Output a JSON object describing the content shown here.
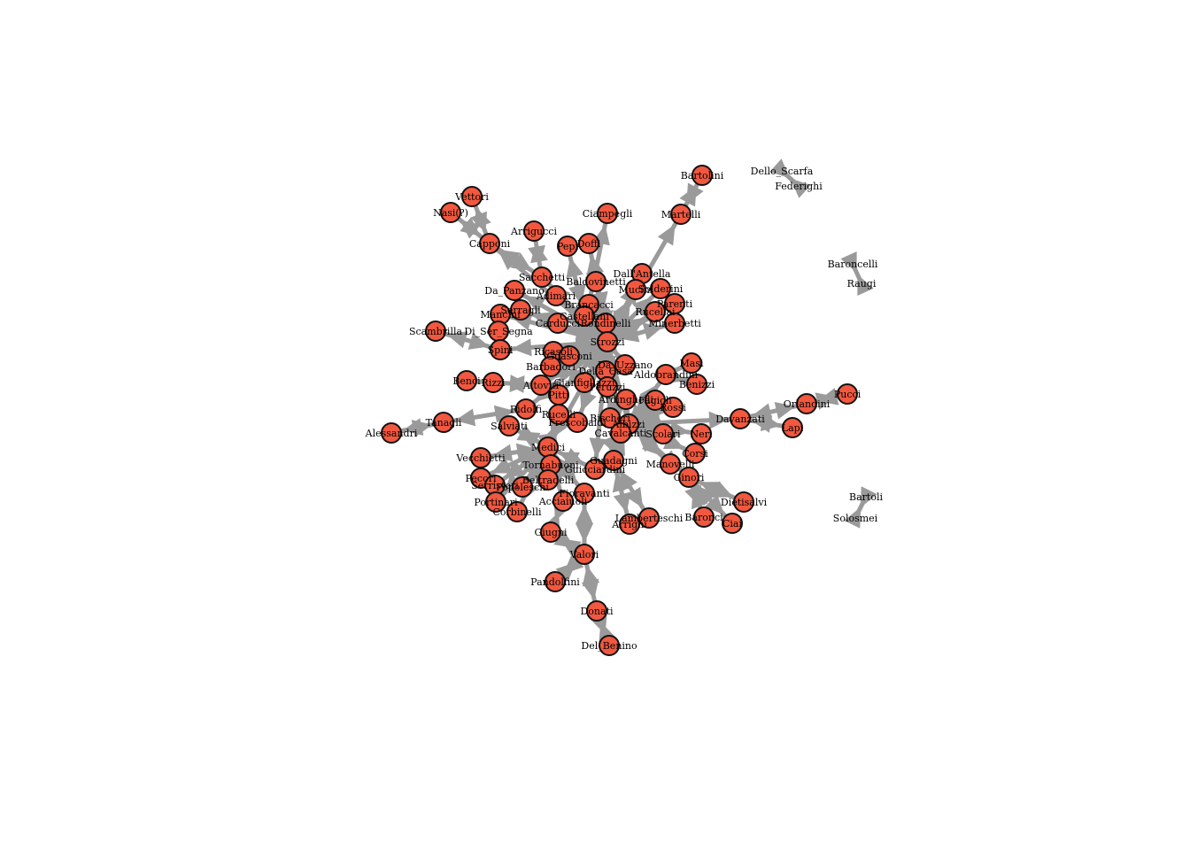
{
  "graph": {
    "nodes": [
      {
        "id": "Bartolini",
        "visible": true
      },
      {
        "id": "Dello_Scarfa",
        "visible": false
      },
      {
        "id": "Federighi",
        "visible": false
      },
      {
        "id": "Vettori",
        "visible": true
      },
      {
        "id": "Nasi(?)",
        "visible": true
      },
      {
        "id": "Ciampegli",
        "visible": true
      },
      {
        "id": "Martelli",
        "visible": true
      },
      {
        "id": "Arrigucci",
        "visible": true
      },
      {
        "id": "Capponi",
        "visible": true
      },
      {
        "id": "Pepi",
        "visible": true
      },
      {
        "id": "Doffi",
        "visible": true
      },
      {
        "id": "Baroncelli",
        "visible": false
      },
      {
        "id": "Raugi",
        "visible": false
      },
      {
        "id": "Sacchetti",
        "visible": true
      },
      {
        "id": "Dall'Antella",
        "visible": true
      },
      {
        "id": "Baldovinetti",
        "visible": true
      },
      {
        "id": "Da_Panzano",
        "visible": true
      },
      {
        "id": "Adimari",
        "visible": true
      },
      {
        "id": "Mucini",
        "visible": true
      },
      {
        "id": "Solderini",
        "visible": true
      },
      {
        "id": "Brancacci",
        "visible": true
      },
      {
        "id": "Parenti",
        "visible": true
      },
      {
        "id": "Mancini",
        "visible": true
      },
      {
        "id": "Serragli",
        "visible": true
      },
      {
        "id": "Castellani",
        "visible": true
      },
      {
        "id": "Rucellai",
        "visible": true
      },
      {
        "id": "Carducci",
        "visible": true
      },
      {
        "id": "Rondinelli",
        "visible": true
      },
      {
        "id": "Minerbetti",
        "visible": true
      },
      {
        "id": "Scambrilla",
        "visible": true
      },
      {
        "id": "Di_Ser_Segna",
        "visible": true
      },
      {
        "id": "Strozzi",
        "visible": true
      },
      {
        "id": "Spini",
        "visible": true
      },
      {
        "id": "Ricasoli",
        "visible": true
      },
      {
        "id": "Guasconi",
        "visible": true
      },
      {
        "id": "Masi",
        "visible": true
      },
      {
        "id": "Da_Uzzano",
        "visible": true
      },
      {
        "id": "Barbadori",
        "visible": true
      },
      {
        "id": "Della_Casa",
        "visible": true
      },
      {
        "id": "Aldobrandini",
        "visible": true
      },
      {
        "id": "Benci",
        "visible": true
      },
      {
        "id": "Benizzi",
        "visible": true
      },
      {
        "id": "Rizzi",
        "visible": true
      },
      {
        "id": "Altoviti",
        "visible": true
      },
      {
        "id": "Gianfigliazzi",
        "visible": true
      },
      {
        "id": "Peruzzi",
        "visible": true
      },
      {
        "id": "Pitti",
        "visible": true
      },
      {
        "id": "Orlandini",
        "visible": true
      },
      {
        "id": "Pucci",
        "visible": true
      },
      {
        "id": "Ardinghelli",
        "visible": true
      },
      {
        "id": "Fagioli",
        "visible": true
      },
      {
        "id": "Rossi",
        "visible": true
      },
      {
        "id": "Davanzati",
        "visible": true
      },
      {
        "id": "Ridolfi",
        "visible": true
      },
      {
        "id": "Tanagli",
        "visible": true
      },
      {
        "id": "Bischeri",
        "visible": true
      },
      {
        "id": "Rucelli",
        "visible": true
      },
      {
        "id": "Frescobaldi",
        "visible": true
      },
      {
        "id": "Albizzi",
        "visible": true
      },
      {
        "id": "Lapi",
        "visible": true
      },
      {
        "id": "Alessandri",
        "visible": true
      },
      {
        "id": "Salviati",
        "visible": true
      },
      {
        "id": "Cavalcanti",
        "visible": true
      },
      {
        "id": "Scolari",
        "visible": true
      },
      {
        "id": "Neri",
        "visible": true
      },
      {
        "id": "Medici",
        "visible": true
      },
      {
        "id": "Corsi",
        "visible": true
      },
      {
        "id": "Vecchietti",
        "visible": true
      },
      {
        "id": "Guadagni",
        "visible": true
      },
      {
        "id": "Tornabuoni",
        "visible": true
      },
      {
        "id": "Guicciardini",
        "visible": true
      },
      {
        "id": "Manovelli",
        "visible": true
      },
      {
        "id": "Pecori",
        "visible": true
      },
      {
        "id": "Ginori",
        "visible": true
      },
      {
        "id": "Serristori",
        "visible": true
      },
      {
        "id": "Popoleschi",
        "visible": true
      },
      {
        "id": "Beltradelli",
        "visible": true
      },
      {
        "id": "Fioravanti",
        "visible": true
      },
      {
        "id": "Bartoli",
        "visible": false
      },
      {
        "id": "Portinari",
        "visible": true
      },
      {
        "id": "Acciaiuoli",
        "visible": true
      },
      {
        "id": "Dietisalvi",
        "visible": true
      },
      {
        "id": "Corbinelli",
        "visible": true
      },
      {
        "id": "Lamberteschi",
        "visible": true
      },
      {
        "id": "Arrighi",
        "visible": true
      },
      {
        "id": "Baronci",
        "visible": true
      },
      {
        "id": "Ciai",
        "visible": true
      },
      {
        "id": "Solosmei",
        "visible": false
      },
      {
        "id": "Giugni",
        "visible": true
      },
      {
        "id": "Valori",
        "visible": true
      },
      {
        "id": "Pandolfini",
        "visible": true
      },
      {
        "id": "Donati",
        "visible": true
      },
      {
        "id": "Del_Benino",
        "visible": true
      }
    ],
    "labels": {
      "Bartolini": "Bartolini",
      "Dello_Scarfa": "Dello_Scarfa",
      "Federighi": "Federighi",
      "Vettori": "Vettori",
      "Nasi(?)": "Nasi(?)",
      "Ciampegli": "Ciampegli",
      "Martelli": "Martelli",
      "Arrigucci": "Arrigucci",
      "Capponi": "Capponi",
      "Pepi": "Pepi",
      "Doffi": "Doffi",
      "Baroncelli": "Baroncelli",
      "Raugi": "Raugi",
      "Sacchetti": "Sacchetti",
      "Dall'Antella": "Dall'Antella",
      "Baldovinetti": "Baldovinetti",
      "Da_Panzano": "Da_Panzano",
      "Adimari": "Adimari",
      "Mucini": "Mucini",
      "Solderini": "Solderini",
      "Brancacci": "Brancacci",
      "Parenti": "Parenti",
      "Mancini": "Mancini",
      "Serragli": "Serragli",
      "Castellani": "Castellani",
      "Rucellai": "Rucellai",
      "Carducci": "Carducci",
      "Rondinelli": "Rondinelli",
      "Minerbetti": "Minerbetti",
      "Scambrilla": "Scambrilla",
      "Di_Ser_Segna": "Di_Ser_Segna",
      "Strozzi": "Strozzi",
      "Spini": "Spini",
      "Ricasoli": "Ricasoli",
      "Guasconi": "Guasconi",
      "Masi": "Masi",
      "Da_Uzzano": "Da_Uzzano",
      "Barbadori": "Barbadori",
      "Della_Casa": "Della_Casa",
      "Aldobrandini": "Aldobrandini",
      "Benci": "Benci",
      "Benizzi": "Benizzi",
      "Rizzi": "Rizzi",
      "Altoviti": "Altoviti",
      "Gianfigliazzi": "Gianfigliazzi",
      "Peruzzi": "Peruzzi",
      "Pitti": "Pitti",
      "Orlandini": "Orlandini",
      "Pucci": "Pucci",
      "Ardinghelli": "Ardinghelli",
      "Fagioli": "Fagioli",
      "Rossi": "Rossi",
      "Davanzati": "Davanzati",
      "Ridolfi": "Ridolfi",
      "Tanagli": "Tanagli",
      "Bischeri": "Bischeri",
      "Rucelli": "Rucelli",
      "Frescobaldi": "Frescobaldi",
      "Albizzi": "Albizzi",
      "Lapi": "Lapi",
      "Alessandri": "Alessandri",
      "Salviati": "Salviati",
      "Cavalcanti": "Cavalcanti",
      "Scolari": "Scolari",
      "Neri": "Neri",
      "Medici": "Medici",
      "Corsi": "Corsi",
      "Vecchietti": "Vecchietti",
      "Guadagni": "Guadagni",
      "Tornabuoni": "Tornabuoni",
      "Guicciardini": "Guicciardini",
      "Manovelli": "Manovelli",
      "Pecori": "Pecori",
      "Ginori": "Ginori",
      "Serristori": "Serristori",
      "Popoleschi": "Popoleschi",
      "Beltradelli": "Beltradelli",
      "Fioravanti": "Fioravanti",
      "Bartoli": "Bartoli",
      "Portinari": "Portinari",
      "Acciaiuoli": "Acciaiuoli",
      "Dietisalvi": "Dietisalvi",
      "Corbinelli": "Corbinelli",
      "Lamberteschi": "Lamberteschi",
      "Arrighi": "Arrighi",
      "Baronci": "Baronci",
      "Ciai": "Ciai",
      "Solosmei": "Solosmei",
      "Giugni": "Giugni",
      "Valori": "Valori",
      "Pandolfini": "Pandolfini",
      "Donati": "Donati",
      "Del_Benino": "Del_Benino"
    },
    "edges": [
      [
        "Bartolini",
        "Martelli"
      ],
      [
        "Martelli",
        "Strozzi"
      ],
      [
        "Dello_Scarfa",
        "Federighi"
      ],
      [
        "Baroncelli",
        "Raugi"
      ],
      [
        "Bartoli",
        "Solosmei"
      ],
      [
        "Vettori",
        "Capponi"
      ],
      [
        "Nasi(?)",
        "Capponi"
      ],
      [
        "Capponi",
        "Sacchetti"
      ],
      [
        "Capponi",
        "Strozzi"
      ],
      [
        "Arrigucci",
        "Sacchetti"
      ],
      [
        "Ciampegli",
        "Brancacci"
      ],
      [
        "Pepi",
        "Castellani"
      ],
      [
        "Doffi",
        "Rondinelli"
      ],
      [
        "Sacchetti",
        "Strozzi"
      ],
      [
        "Dall'Antella",
        "Strozzi"
      ],
      [
        "Baldovinetti",
        "Strozzi"
      ],
      [
        "Da_Panzano",
        "Strozzi"
      ],
      [
        "Adimari",
        "Strozzi"
      ],
      [
        "Mucini",
        "Strozzi"
      ],
      [
        "Solderini",
        "Strozzi"
      ],
      [
        "Brancacci",
        "Strozzi"
      ],
      [
        "Parenti",
        "Strozzi"
      ],
      [
        "Mancini",
        "Strozzi"
      ],
      [
        "Serragli",
        "Strozzi"
      ],
      [
        "Castellani",
        "Strozzi"
      ],
      [
        "Rucellai",
        "Strozzi"
      ],
      [
        "Carducci",
        "Strozzi"
      ],
      [
        "Rondinelli",
        "Strozzi"
      ],
      [
        "Minerbetti",
        "Strozzi"
      ],
      [
        "Scambrilla",
        "Spini"
      ],
      [
        "Spini",
        "Strozzi"
      ],
      [
        "Ricasoli",
        "Strozzi"
      ],
      [
        "Guasconi",
        "Strozzi"
      ],
      [
        "Masi",
        "Aldobrandini"
      ],
      [
        "Da_Uzzano",
        "Strozzi"
      ],
      [
        "Barbadori",
        "Strozzi"
      ],
      [
        "Della_Casa",
        "Strozzi"
      ],
      [
        "Aldobrandini",
        "Albizzi"
      ],
      [
        "Benci",
        "Rizzi"
      ],
      [
        "Rizzi",
        "Altoviti"
      ],
      [
        "Benizzi",
        "Aldobrandini"
      ],
      [
        "Altoviti",
        "Strozzi"
      ],
      [
        "Gianfigliazzi",
        "Strozzi"
      ],
      [
        "Peruzzi",
        "Strozzi"
      ],
      [
        "Pitti",
        "Strozzi"
      ],
      [
        "Orlandini",
        "Pucci"
      ],
      [
        "Orlandini",
        "Davanzati"
      ],
      [
        "Lapi",
        "Davanzati"
      ],
      [
        "Davanzati",
        "Albizzi"
      ],
      [
        "Ardinghelli",
        "Albizzi"
      ],
      [
        "Fagioli",
        "Albizzi"
      ],
      [
        "Rossi",
        "Albizzi"
      ],
      [
        "Ridolfi",
        "Strozzi"
      ],
      [
        "Alessandri",
        "Tanagli"
      ],
      [
        "Tanagli",
        "Ridolfi"
      ],
      [
        "Bischeri",
        "Strozzi"
      ],
      [
        "Rucelli",
        "Medici"
      ],
      [
        "Frescobaldi",
        "Strozzi"
      ],
      [
        "Albizzi",
        "Strozzi"
      ],
      [
        "Salviati",
        "Medici"
      ],
      [
        "Cavalcanti",
        "Albizzi"
      ],
      [
        "Scolari",
        "Albizzi"
      ],
      [
        "Neri",
        "Albizzi"
      ],
      [
        "Medici",
        "Strozzi"
      ],
      [
        "Corsi",
        "Albizzi"
      ],
      [
        "Vecchietti",
        "Medici"
      ],
      [
        "Guadagni",
        "Albizzi"
      ],
      [
        "Tornabuoni",
        "Medici"
      ],
      [
        "Guicciardini",
        "Medici"
      ],
      [
        "Manovelli",
        "Albizzi"
      ],
      [
        "Pecori",
        "Medici"
      ],
      [
        "Ginori",
        "Albizzi"
      ],
      [
        "Serristori",
        "Medici"
      ],
      [
        "Popoleschi",
        "Medici"
      ],
      [
        "Beltradelli",
        "Medici"
      ],
      [
        "Fioravanti",
        "Medici"
      ],
      [
        "Portinari",
        "Medici"
      ],
      [
        "Acciaiuoli",
        "Medici"
      ],
      [
        "Dietisalvi",
        "Ginori"
      ],
      [
        "Corbinelli",
        "Medici"
      ],
      [
        "Lamberteschi",
        "Guadagni"
      ],
      [
        "Arrighi",
        "Guadagni"
      ],
      [
        "Baronci",
        "Ginori"
      ],
      [
        "Ciai",
        "Ginori"
      ],
      [
        "Giugni",
        "Acciaiuoli"
      ],
      [
        "Valori",
        "Giugni"
      ],
      [
        "Valori",
        "Fioravanti"
      ],
      [
        "Pandolfini",
        "Valori"
      ],
      [
        "Donati",
        "Valori"
      ],
      [
        "Del_Benino",
        "Donati"
      ],
      [
        "Guicciardini",
        "Strozzi"
      ],
      [
        "Cavalcanti",
        "Strozzi"
      ]
    ]
  }
}
